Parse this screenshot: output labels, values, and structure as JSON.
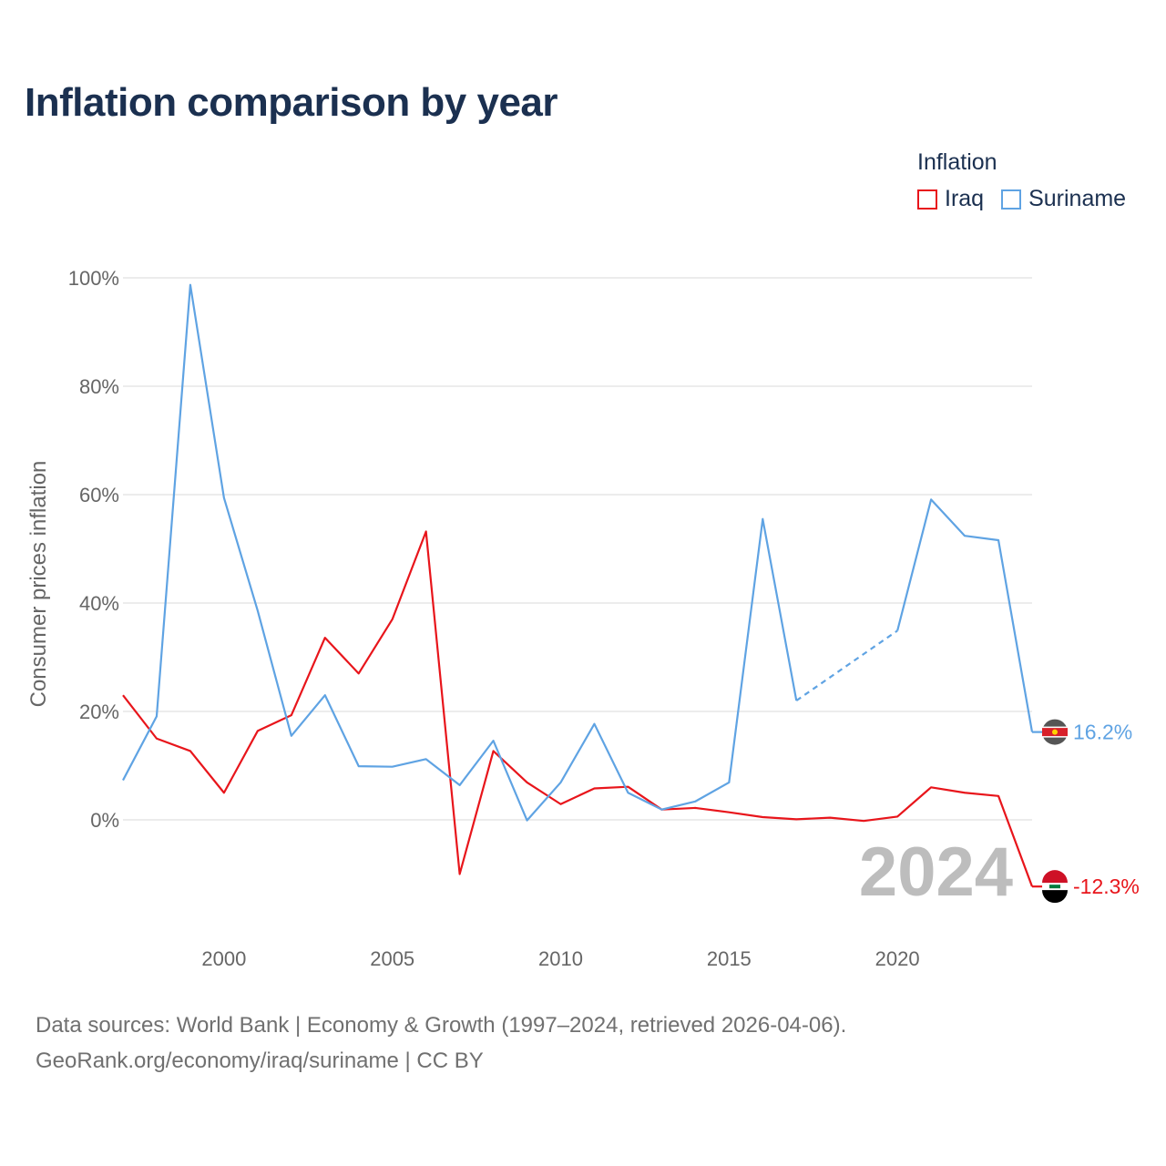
{
  "title": "Inflation comparison by year",
  "legend": {
    "title": "Inflation",
    "items": [
      {
        "label": "Iraq",
        "color": "#e8151b"
      },
      {
        "label": "Suriname",
        "color": "#5fa3e3"
      }
    ]
  },
  "footer": {
    "line1": "Data sources: World Bank | Economy & Growth (1997–2024, retrieved 2026-04-06).",
    "line2": "GeoRank.org/economy/iraq/suriname | CC BY"
  },
  "chart_data": {
    "type": "line",
    "title": "Inflation comparison by year",
    "xlabel": "",
    "ylabel": "Consumer prices inflation",
    "xlim": [
      1997,
      2024
    ],
    "ylim": [
      -16,
      104
    ],
    "x_ticks": [
      2000,
      2005,
      2010,
      2015,
      2020
    ],
    "x_tick_labels": [
      "2000",
      "2005",
      "2010",
      "2015",
      "2020"
    ],
    "y_ticks": [
      0,
      20,
      40,
      60,
      80,
      100
    ],
    "y_tick_labels": [
      "0%",
      "20%",
      "40%",
      "60%",
      "80%",
      "100%"
    ],
    "year_label": "2024",
    "x": [
      1997,
      1998,
      1999,
      2000,
      2001,
      2002,
      2003,
      2004,
      2005,
      2006,
      2007,
      2008,
      2009,
      2010,
      2011,
      2012,
      2013,
      2014,
      2015,
      2016,
      2017,
      2018,
      2019,
      2020,
      2021,
      2022,
      2023,
      2024
    ],
    "series": [
      {
        "name": "Iraq",
        "color": "#e8151b",
        "values": [
          23.0,
          15.0,
          12.7,
          5.0,
          16.4,
          19.3,
          33.6,
          27.0,
          37.0,
          53.2,
          -10.0,
          12.7,
          6.9,
          2.9,
          5.8,
          6.1,
          1.9,
          2.2,
          1.4,
          0.5,
          0.1,
          0.4,
          -0.2,
          0.6,
          6.0,
          5.0,
          4.4,
          -12.3
        ],
        "end_label": "-12.3%",
        "flag": "iraq-flag"
      },
      {
        "name": "Suriname",
        "color": "#5fa3e3",
        "values": [
          7.3,
          19.1,
          98.7,
          59.4,
          38.6,
          15.5,
          23.0,
          9.9,
          9.8,
          11.2,
          6.4,
          14.6,
          -0.1,
          6.9,
          17.7,
          5.0,
          1.9,
          3.4,
          6.9,
          55.5,
          22.0,
          null,
          null,
          34.9,
          59.1,
          52.4,
          51.6,
          16.2
        ],
        "end_label": "16.2%",
        "flag": "suriname-flag",
        "dashed_gap": [
          2017,
          2020
        ]
      }
    ]
  }
}
